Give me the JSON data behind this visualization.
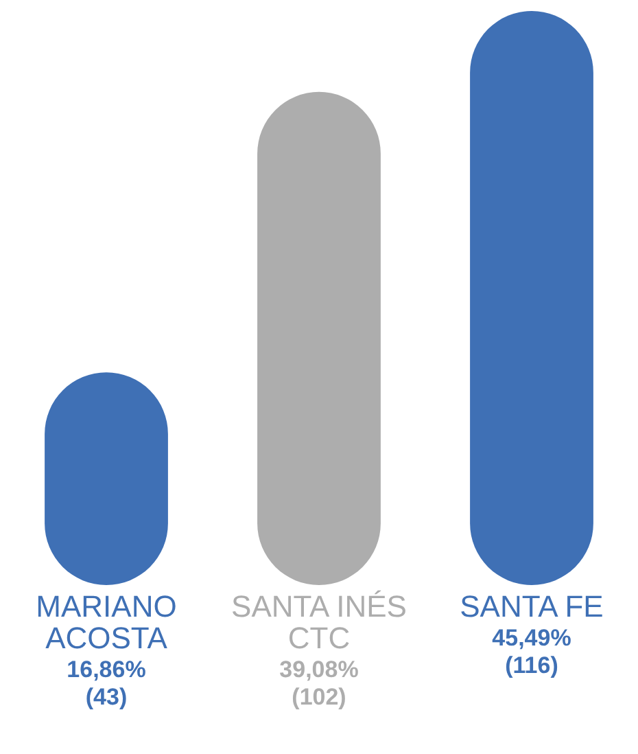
{
  "chart_data": {
    "type": "bar",
    "categories": [
      "MARIANO ACOSTA",
      "SANTA INÉS CTC",
      "SANTA FE"
    ],
    "values": [
      16.86,
      39.08,
      45.49
    ],
    "colors": [
      "#3f70b5",
      "#adadad",
      "#3f70b5"
    ],
    "value_labels": [
      "16,86% (43)",
      "39,08% (102)",
      "45,49% (116)"
    ],
    "legend": false
  }
}
